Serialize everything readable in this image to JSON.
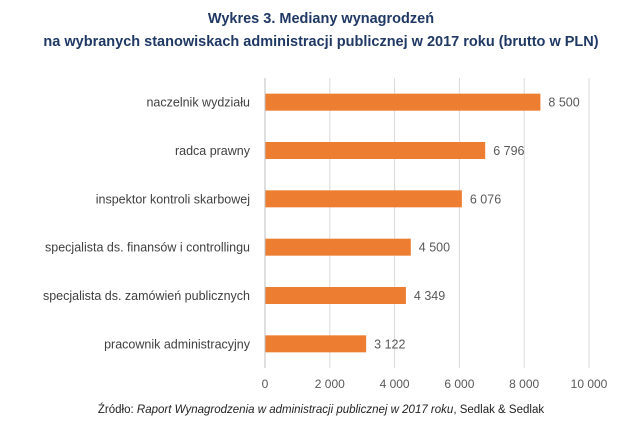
{
  "chart_data": {
    "type": "bar",
    "orientation": "horizontal",
    "title_line1": "Wykres 3. Mediany wynagrodzeń",
    "title_line2": "na wybranych stanowiskach administracji publicznej w 2017 roku (brutto w PLN)",
    "categories": [
      "naczelnik wydziału",
      "radca prawny",
      "inspektor kontroli skarbowej",
      "specjalista ds. finansów i controllingu",
      "specjalista ds. zamówień publicznych",
      "pracownik administracyjny"
    ],
    "values": [
      8500,
      6796,
      6076,
      4500,
      4349,
      3122
    ],
    "value_labels": [
      "8 500",
      "6 796",
      "6 076",
      "4 500",
      "4 349",
      "3 122"
    ],
    "xlim": [
      0,
      10000
    ],
    "xticks": [
      0,
      2000,
      4000,
      6000,
      8000,
      10000
    ],
    "xtick_labels": [
      "0",
      "2 000",
      "4 000",
      "6 000",
      "8 000",
      "10 000"
    ],
    "grid": "vertical",
    "bar_color": "#ed7d31"
  },
  "source": {
    "prefix": "Źródło: ",
    "title": "Raport Wynagrodzenia w administracji publicznej w 2017 roku",
    "suffix": ", Sedlak & Sedlak"
  }
}
